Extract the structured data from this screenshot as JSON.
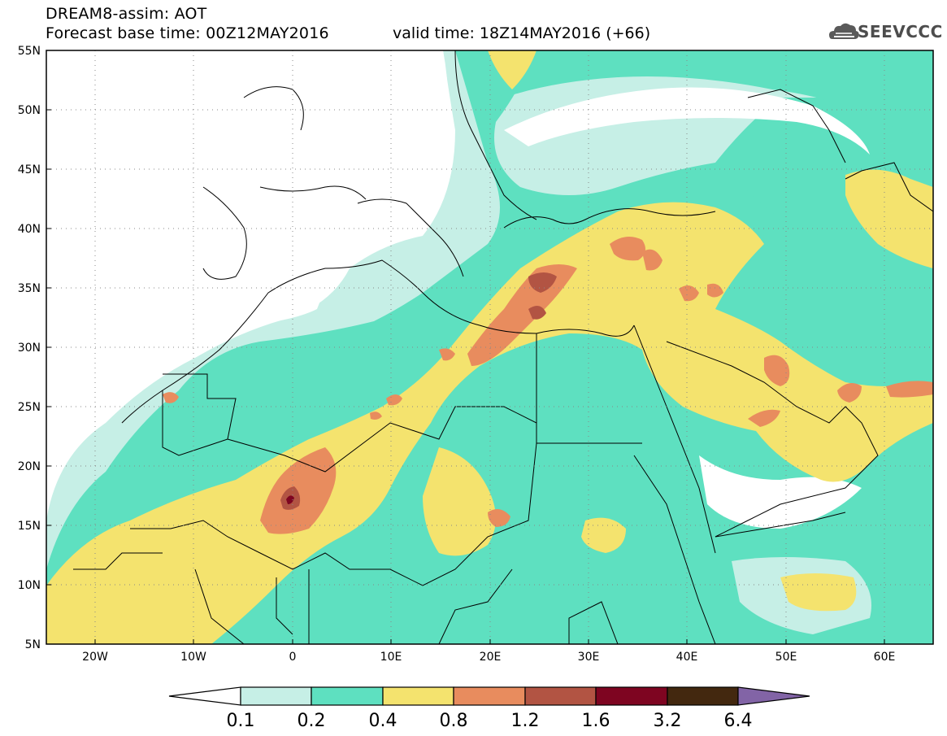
{
  "header": {
    "title": "DREAM8-assim: AOT",
    "base_time": "Forecast base time: 00Z12MAY2016",
    "valid_time": "valid time: 18Z14MAY2016 (+66)"
  },
  "logo": {
    "icon": "cloud-icon",
    "text": "SEEVCCC"
  },
  "map": {
    "lat_labels": [
      "55N",
      "50N",
      "45N",
      "40N",
      "35N",
      "30N",
      "25N",
      "20N",
      "15N",
      "10N",
      "5N"
    ],
    "lon_labels": [
      "20W",
      "10W",
      "0",
      "10E",
      "20E",
      "30E",
      "40E",
      "50E",
      "60E"
    ],
    "lat_range": [
      5,
      55
    ],
    "lon_range": [
      -25,
      65
    ],
    "grid": "dotted"
  },
  "colorbar": {
    "levels": [
      "0.1",
      "0.2",
      "0.4",
      "0.8",
      "1.2",
      "1.6",
      "3.2",
      "6.4"
    ],
    "colors": [
      "#ffffff",
      "#c6efe6",
      "#5ee0c0",
      "#f4e36e",
      "#e88c5e",
      "#b25443",
      "#7e0521",
      "#43280f",
      "#8264a6"
    ]
  }
}
